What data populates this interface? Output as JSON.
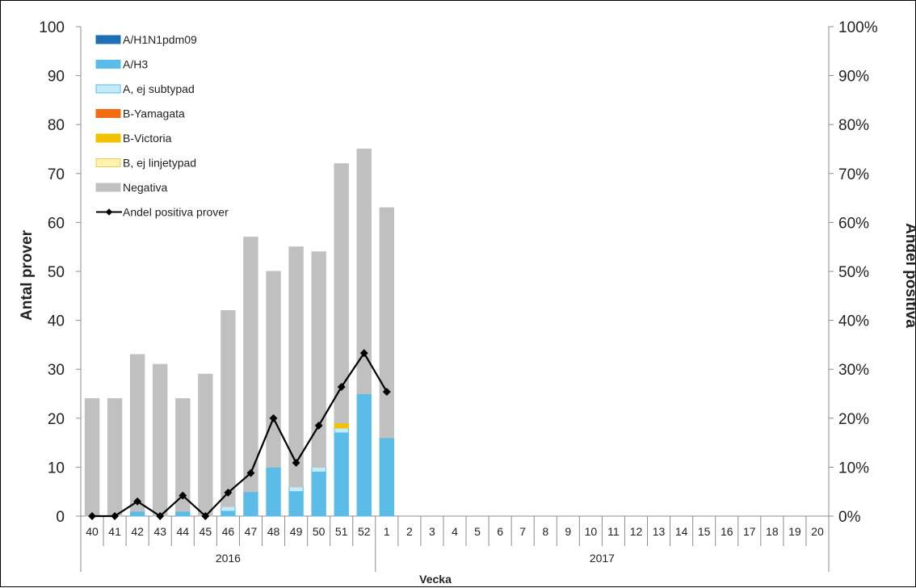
{
  "chart_data": {
    "type": "bar",
    "subtype": "stacked bar with line on secondary axis",
    "title": "",
    "xlabel": "Vecka",
    "ylabel": "Antal prover",
    "y2label": "Andel positiva",
    "ylim": [
      0,
      100
    ],
    "y2lim": [
      0,
      1
    ],
    "yticks": [
      "0",
      "10",
      "20",
      "30",
      "40",
      "50",
      "60",
      "70",
      "80",
      "90",
      "100"
    ],
    "y2ticks": [
      "0%",
      "10%",
      "20%",
      "30%",
      "40%",
      "50%",
      "60%",
      "70%",
      "80%",
      "90%",
      "100%"
    ],
    "gridlines": false,
    "legend_position": "top-left",
    "categories": [
      "40",
      "41",
      "42",
      "43",
      "44",
      "45",
      "46",
      "47",
      "48",
      "49",
      "50",
      "51",
      "52",
      "1",
      "2",
      "3",
      "4",
      "5",
      "6",
      "7",
      "8",
      "9",
      "10",
      "11",
      "12",
      "13",
      "14",
      "15",
      "16",
      "17",
      "18",
      "19",
      "20"
    ],
    "year_groups": [
      {
        "label": "2016",
        "count": 13
      },
      {
        "label": "2017",
        "count": 20
      }
    ],
    "series": [
      {
        "name": "A/H1N1pdm09",
        "kind": "bar",
        "color": "#1f6fb5",
        "border": "#1f6fb5",
        "values": [
          0,
          0,
          0,
          0,
          0,
          0,
          0,
          0,
          0,
          0,
          0,
          0,
          0,
          0,
          null,
          null,
          null,
          null,
          null,
          null,
          null,
          null,
          null,
          null,
          null,
          null,
          null,
          null,
          null,
          null,
          null,
          null,
          null
        ]
      },
      {
        "name": "A/H3",
        "kind": "bar",
        "color": "#5bbce8",
        "border": "#5bbce8",
        "values": [
          0,
          0,
          1,
          0,
          1,
          0,
          1,
          5,
          10,
          5,
          9,
          17,
          25,
          16,
          null,
          null,
          null,
          null,
          null,
          null,
          null,
          null,
          null,
          null,
          null,
          null,
          null,
          null,
          null,
          null,
          null,
          null,
          null
        ]
      },
      {
        "name": "A, ej subtypad",
        "kind": "bar",
        "color": "#c5ebfb",
        "border": "#5bbce8",
        "values": [
          0,
          0,
          0,
          0,
          0,
          0,
          1,
          0,
          0,
          1,
          1,
          1,
          0,
          0,
          null,
          null,
          null,
          null,
          null,
          null,
          null,
          null,
          null,
          null,
          null,
          null,
          null,
          null,
          null,
          null,
          null,
          null,
          null
        ]
      },
      {
        "name": "B-Yamagata",
        "kind": "bar",
        "color": "#f26a12",
        "border": "#f26a12",
        "values": [
          0,
          0,
          0,
          0,
          0,
          0,
          0,
          0,
          0,
          0,
          0,
          0,
          0,
          0,
          null,
          null,
          null,
          null,
          null,
          null,
          null,
          null,
          null,
          null,
          null,
          null,
          null,
          null,
          null,
          null,
          null,
          null,
          null
        ]
      },
      {
        "name": "B-Victoria",
        "kind": "bar",
        "color": "#f2c200",
        "border": "#f2c200",
        "values": [
          0,
          0,
          0,
          0,
          0,
          0,
          0,
          0,
          0,
          0,
          0,
          1,
          0,
          0,
          null,
          null,
          null,
          null,
          null,
          null,
          null,
          null,
          null,
          null,
          null,
          null,
          null,
          null,
          null,
          null,
          null,
          null,
          null
        ]
      },
      {
        "name": "B, ej linjetypad",
        "kind": "bar",
        "color": "#fff2b0",
        "border": "#e8cf55",
        "values": [
          0,
          0,
          0,
          0,
          0,
          0,
          0,
          0,
          0,
          0,
          0,
          0,
          0,
          0,
          null,
          null,
          null,
          null,
          null,
          null,
          null,
          null,
          null,
          null,
          null,
          null,
          null,
          null,
          null,
          null,
          null,
          null,
          null
        ]
      },
      {
        "name": "Negativa",
        "kind": "bar",
        "color": "#c0c0c0",
        "border": "#c0c0c0",
        "values": [
          24,
          24,
          32,
          31,
          23,
          29,
          40,
          52,
          40,
          49,
          44,
          53,
          50,
          47,
          null,
          null,
          null,
          null,
          null,
          null,
          null,
          null,
          null,
          null,
          null,
          null,
          null,
          null,
          null,
          null,
          null,
          null,
          null
        ]
      },
      {
        "name": "Andel positiva prover",
        "kind": "line",
        "axis": "right",
        "color": "#000000",
        "values": [
          0,
          0,
          0.03,
          0,
          0.042,
          0,
          0.048,
          0.088,
          0.2,
          0.109,
          0.185,
          0.264,
          0.333,
          0.254,
          null,
          null,
          null,
          null,
          null,
          null,
          null,
          null,
          null,
          null,
          null,
          null,
          null,
          null,
          null,
          null,
          null,
          null,
          null
        ]
      }
    ]
  }
}
